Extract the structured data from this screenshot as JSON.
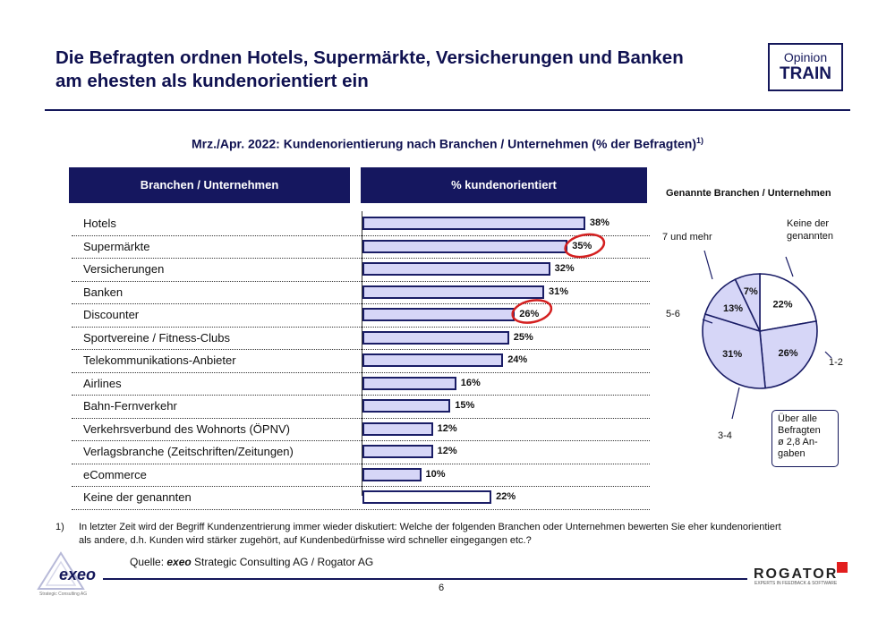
{
  "header": {
    "title_line1": "Die Befragten ordnen Hotels, Supermärkte, Versicherungen und Banken",
    "title_line2": "am ehesten als kundenorientiert ein",
    "brand_line1": "Opinion",
    "brand_line2": "TRAIN"
  },
  "chart_title": "Mrz./Apr. 2022: Kundenorientierung nach Branchen / Unternehmen (% der Befragten)",
  "chart_title_sup": "1)",
  "table_headers": {
    "left": "Branchen / Unternehmen",
    "right": "% kundenorientiert"
  },
  "chart_data": [
    {
      "type": "bar",
      "orientation": "horizontal",
      "categories": [
        "Hotels",
        "Supermärkte",
        "Versicherungen",
        "Banken",
        "Discounter",
        "Sportvereine / Fitness-Clubs",
        "Telekommunikations-Anbieter",
        "Airlines",
        "Bahn-Fernverkehr",
        "Verkehrsverbund des Wohnorts (ÖPNV)",
        "Verlagsbranche (Zeitschriften/Zeitungen)",
        "eCommerce",
        "Keine der genannten"
      ],
      "values": [
        38,
        35,
        32,
        31,
        26,
        25,
        24,
        16,
        15,
        12,
        12,
        10,
        22
      ],
      "value_labels": [
        "38%",
        "35%",
        "32%",
        "31%",
        "26%",
        "25%",
        "24%",
        "16%",
        "15%",
        "12%",
        "12%",
        "10%",
        "22%"
      ],
      "highlighted": [
        "Supermärkte",
        "Discounter"
      ],
      "bar_color": "#d6d6f7",
      "last_bar_color": "#ffffff",
      "border_color": "#1a1d66",
      "highlight_color": "#d42020"
    },
    {
      "type": "pie",
      "title": "Genannte Branchen / Unternehmen",
      "labels": [
        "Keine der genannten",
        "1-2",
        "3-4",
        "5-6",
        "7 und mehr"
      ],
      "values": [
        22,
        26,
        31,
        13,
        7
      ],
      "value_labels": [
        "22%",
        "26%",
        "31%",
        "13%",
        "7%"
      ],
      "colors": [
        "#ffffff",
        "#d6d6f7",
        "#d6d6f7",
        "#d6d6f7",
        "#d6d6f7"
      ]
    }
  ],
  "pie_outer_labels": {
    "keine_line1": "Keine der",
    "keine_line2": "genannten",
    "seven_plus": "7 und mehr",
    "five_six": "5-6",
    "one_two": "1-2",
    "three_four": "3-4"
  },
  "note_box": {
    "line1": "Über alle",
    "line2": "Befragten",
    "line3": "ø 2,8 An-",
    "line4": "gaben"
  },
  "footnote": {
    "num": "1)",
    "line1": "In letzter Zeit wird der Begriff Kundenzentrierung immer wieder diskutiert: Welche der folgenden Branchen oder Unternehmen bewerten Sie eher kundenorientiert",
    "line2": "als andere, d.h. Kunden wird stärker zugehört, auf Kundenbedürfnisse wird schneller eingegangen etc.?"
  },
  "source": {
    "prefix": "Quelle: ",
    "brand": "exeo",
    "rest": " Strategic Consulting AG / Rogator AG"
  },
  "page_number": "6",
  "logos": {
    "exeo": "exeo",
    "exeo_sub": "Strategic Consulting AG",
    "rogator": "ROGATOR",
    "rogator_sub": "EXPERTS IN FEEDBACK & SOFTWARE"
  }
}
